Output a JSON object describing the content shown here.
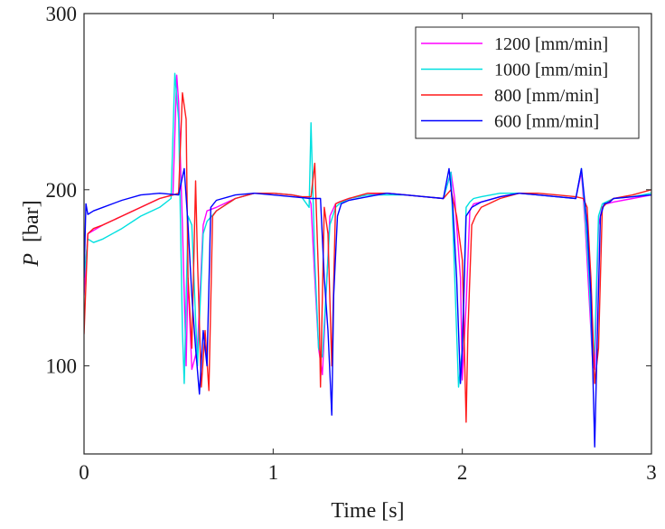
{
  "chart_data": {
    "type": "line",
    "title": "",
    "xlabel": "Time [s]",
    "ylabel_italic": "P",
    "ylabel_unit": "[bar]",
    "xlim": [
      0,
      3
    ],
    "ylim": [
      50,
      300
    ],
    "xticks": [
      0,
      1,
      2,
      3
    ],
    "xtick_labels": [
      "0",
      "1",
      "2",
      "3"
    ],
    "yticks": [
      100,
      200,
      300
    ],
    "ytick_labels": [
      "100",
      "200",
      "300"
    ],
    "grid": false,
    "legend_position": "top-right",
    "series": [
      {
        "name": "1200 [mm/min]",
        "color": "#ff00ff",
        "x": [
          0.0,
          0.02,
          0.1,
          0.2,
          0.3,
          0.4,
          0.47,
          0.49,
          0.5,
          0.52,
          0.54,
          0.55,
          0.57,
          0.6,
          0.63,
          0.65,
          0.7,
          0.8,
          0.9,
          1.0,
          1.1,
          1.15,
          1.19,
          1.2,
          1.22,
          1.24,
          1.26,
          1.3,
          1.33,
          1.35,
          1.4,
          1.5,
          1.6,
          1.7,
          1.8,
          1.9,
          1.94,
          1.96,
          1.99,
          2.0,
          2.02,
          2.04,
          2.06,
          2.1,
          2.2,
          2.3,
          2.4,
          2.5,
          2.6,
          2.63,
          2.65,
          2.67,
          2.69,
          2.7,
          2.72,
          2.74,
          2.76,
          2.8,
          2.9,
          3.0
        ],
        "y": [
          140,
          175,
          180,
          185,
          190,
          195,
          197,
          265,
          250,
          180,
          100,
          150,
          98,
          110,
          180,
          188,
          190,
          195,
          198,
          198,
          197,
          196,
          195,
          192,
          150,
          110,
          95,
          185,
          192,
          193,
          195,
          197,
          198,
          197,
          196,
          195,
          210,
          195,
          150,
          92,
          135,
          188,
          192,
          193,
          196,
          198,
          197,
          196,
          195,
          210,
          180,
          140,
          100,
          98,
          180,
          190,
          192,
          193,
          195,
          197
        ]
      },
      {
        "name": "1000 [mm/min]",
        "color": "#00e0e0",
        "x": [
          0.0,
          0.02,
          0.05,
          0.1,
          0.2,
          0.3,
          0.4,
          0.46,
          0.48,
          0.5,
          0.52,
          0.53,
          0.55,
          0.57,
          0.6,
          0.63,
          0.65,
          0.7,
          0.8,
          0.9,
          1.0,
          1.1,
          1.15,
          1.19,
          1.2,
          1.22,
          1.24,
          1.26,
          1.3,
          1.33,
          1.35,
          1.4,
          1.5,
          1.6,
          1.7,
          1.8,
          1.9,
          1.94,
          1.96,
          1.98,
          2.0,
          2.02,
          2.04,
          2.06,
          2.1,
          2.2,
          2.3,
          2.4,
          2.5,
          2.6,
          2.63,
          2.65,
          2.67,
          2.69,
          2.7,
          2.72,
          2.74,
          2.76,
          2.8,
          2.9,
          3.0
        ],
        "y": [
          150,
          172,
          170,
          172,
          178,
          185,
          190,
          195,
          266,
          240,
          120,
          90,
          185,
          180,
          100,
          175,
          182,
          188,
          195,
          198,
          198,
          197,
          196,
          190,
          238,
          160,
          110,
          105,
          180,
          190,
          192,
          195,
          197,
          197,
          197,
          196,
          195,
          210,
          150,
          88,
          110,
          190,
          193,
          195,
          196,
          198,
          198,
          197,
          196,
          195,
          212,
          185,
          150,
          100,
          110,
          185,
          192,
          193,
          195,
          196,
          198
        ]
      },
      {
        "name": "800 [mm/min]",
        "color": "#ff1a1a",
        "x": [
          0.0,
          0.02,
          0.05,
          0.1,
          0.2,
          0.3,
          0.4,
          0.47,
          0.5,
          0.52,
          0.54,
          0.55,
          0.57,
          0.59,
          0.6,
          0.62,
          0.64,
          0.66,
          0.68,
          0.7,
          0.8,
          0.9,
          1.0,
          1.1,
          1.15,
          1.2,
          1.22,
          1.24,
          1.25,
          1.27,
          1.29,
          1.31,
          1.33,
          1.35,
          1.4,
          1.5,
          1.6,
          1.7,
          1.8,
          1.9,
          1.94,
          1.97,
          2.0,
          2.02,
          2.03,
          2.05,
          2.07,
          2.1,
          2.2,
          2.3,
          2.4,
          2.5,
          2.6,
          2.64,
          2.66,
          2.68,
          2.7,
          2.72,
          2.74,
          2.76,
          2.8,
          2.9,
          3.0
        ],
        "y": [
          118,
          175,
          178,
          180,
          185,
          190,
          195,
          197,
          198,
          255,
          240,
          150,
          110,
          205,
          160,
          88,
          120,
          86,
          185,
          188,
          195,
          198,
          198,
          197,
          196,
          196,
          215,
          150,
          88,
          190,
          175,
          100,
          192,
          193,
          195,
          198,
          198,
          197,
          196,
          195,
          200,
          185,
          160,
          68,
          120,
          180,
          185,
          190,
          195,
          198,
          198,
          197,
          196,
          195,
          190,
          150,
          90,
          110,
          190,
          192,
          195,
          197,
          200
        ]
      },
      {
        "name": "600 [mm/min]",
        "color": "#0000ff",
        "x": [
          0.0,
          0.01,
          0.02,
          0.05,
          0.1,
          0.2,
          0.3,
          0.4,
          0.5,
          0.53,
          0.54,
          0.55,
          0.57,
          0.59,
          0.61,
          0.63,
          0.65,
          0.67,
          0.7,
          0.8,
          0.9,
          1.0,
          1.1,
          1.2,
          1.25,
          1.27,
          1.29,
          1.31,
          1.32,
          1.34,
          1.36,
          1.4,
          1.5,
          1.6,
          1.7,
          1.8,
          1.9,
          1.93,
          1.95,
          1.97,
          1.99,
          2.0,
          2.02,
          2.05,
          2.1,
          2.2,
          2.3,
          2.4,
          2.5,
          2.6,
          2.63,
          2.66,
          2.68,
          2.7,
          2.71,
          2.73,
          2.75,
          2.78,
          2.8,
          2.9,
          3.0
        ],
        "y": [
          150,
          192,
          186,
          188,
          190,
          194,
          197,
          198,
          197,
          212,
          196,
          180,
          140,
          110,
          84,
          120,
          100,
          190,
          194,
          197,
          198,
          197,
          196,
          195,
          195,
          150,
          120,
          72,
          140,
          185,
          192,
          194,
          196,
          198,
          197,
          196,
          195,
          212,
          190,
          150,
          90,
          110,
          185,
          190,
          193,
          196,
          198,
          197,
          196,
          195,
          212,
          180,
          140,
          54,
          100,
          185,
          192,
          193,
          195,
          196,
          197
        ]
      }
    ]
  }
}
